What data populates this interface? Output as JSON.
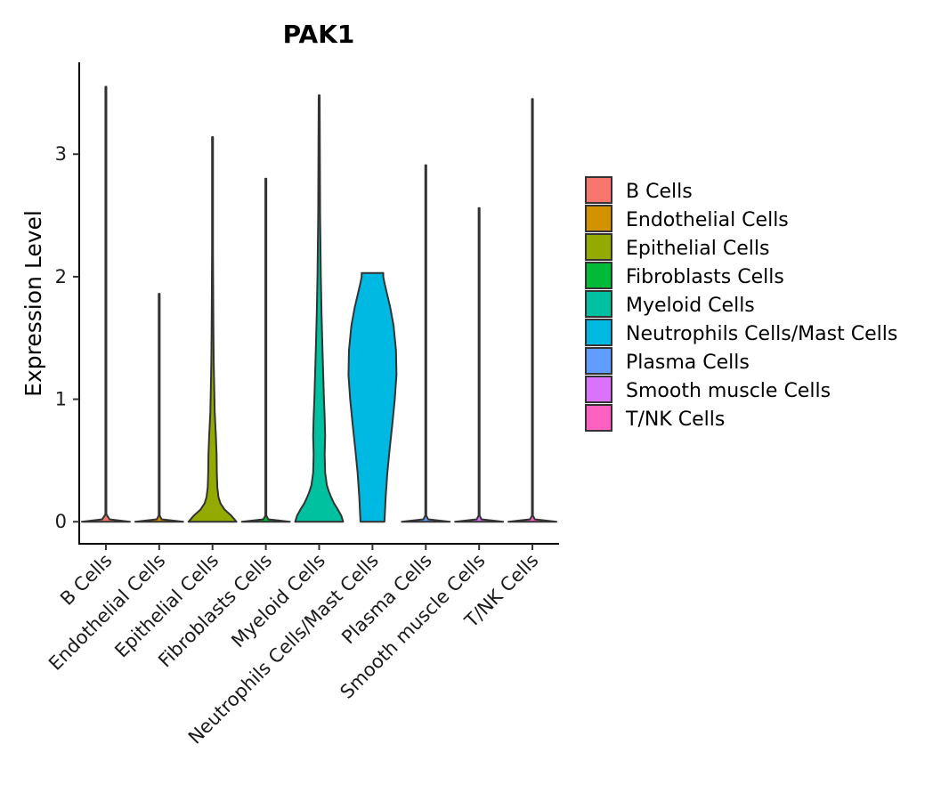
{
  "chart_data": {
    "type": "violin",
    "title": "PAK1",
    "xlabel": "",
    "ylabel": "Expression Level",
    "ylim": [
      -0.18,
      3.75
    ],
    "yticks": [
      0,
      1,
      2,
      3
    ],
    "grid": false,
    "legend_position": "right",
    "categories": [
      "B Cells",
      "Endothelial Cells",
      "Epithelial Cells",
      "Fibroblasts Cells",
      "Myeloid Cells",
      "Neutrophils Cells/Mast Cells",
      "Plasma Cells",
      "Smooth muscle Cells",
      "T/NK Cells"
    ],
    "colors": [
      "#F8766D",
      "#D39200",
      "#93AA00",
      "#00BA38",
      "#00C19F",
      "#00B9E3",
      "#619CFF",
      "#DB72FB",
      "#FF61C3"
    ],
    "series": [
      {
        "name": "B Cells",
        "max": 3.55,
        "profile": [
          [
            0,
            1.0
          ],
          [
            0.02,
            0.15
          ],
          [
            0.06,
            0.02
          ],
          [
            3.55,
            0.02
          ]
        ]
      },
      {
        "name": "Endothelial Cells",
        "max": 1.86,
        "profile": [
          [
            0,
            1.0
          ],
          [
            0.02,
            0.1
          ],
          [
            0.05,
            0.02
          ],
          [
            1.86,
            0.02
          ]
        ]
      },
      {
        "name": "Epithelial Cells",
        "max": 3.14,
        "profile": [
          [
            0,
            1.0
          ],
          [
            0.05,
            0.78
          ],
          [
            0.1,
            0.5
          ],
          [
            0.15,
            0.33
          ],
          [
            0.2,
            0.25
          ],
          [
            0.28,
            0.2
          ],
          [
            0.4,
            0.18
          ],
          [
            0.55,
            0.17
          ],
          [
            0.7,
            0.14
          ],
          [
            0.9,
            0.09
          ],
          [
            1.1,
            0.07
          ],
          [
            1.3,
            0.05
          ],
          [
            1.5,
            0.04
          ],
          [
            1.8,
            0.03
          ],
          [
            2.2,
            0.02
          ],
          [
            3.14,
            0.02
          ]
        ]
      },
      {
        "name": "Fibroblasts Cells",
        "max": 2.8,
        "profile": [
          [
            0,
            1.0
          ],
          [
            0.02,
            0.1
          ],
          [
            0.05,
            0.02
          ],
          [
            2.8,
            0.02
          ]
        ]
      },
      {
        "name": "Myeloid Cells",
        "max": 3.48,
        "profile": [
          [
            0,
            1.0
          ],
          [
            0.05,
            0.92
          ],
          [
            0.1,
            0.78
          ],
          [
            0.15,
            0.62
          ],
          [
            0.2,
            0.5
          ],
          [
            0.25,
            0.4
          ],
          [
            0.3,
            0.32
          ],
          [
            0.4,
            0.25
          ],
          [
            0.55,
            0.23
          ],
          [
            0.7,
            0.25
          ],
          [
            0.85,
            0.23
          ],
          [
            1.0,
            0.2
          ],
          [
            1.2,
            0.17
          ],
          [
            1.4,
            0.14
          ],
          [
            1.7,
            0.1
          ],
          [
            2.0,
            0.07
          ],
          [
            2.5,
            0.04
          ],
          [
            3.0,
            0.03
          ],
          [
            3.48,
            0.02
          ]
        ]
      },
      {
        "name": "Neutrophils Cells/Mast Cells",
        "max": 2.03,
        "profile": [
          [
            0,
            0.5
          ],
          [
            0.2,
            0.55
          ],
          [
            0.4,
            0.62
          ],
          [
            0.6,
            0.72
          ],
          [
            0.8,
            0.83
          ],
          [
            1.0,
            0.93
          ],
          [
            1.2,
            1.0
          ],
          [
            1.4,
            0.98
          ],
          [
            1.6,
            0.88
          ],
          [
            1.75,
            0.74
          ],
          [
            1.85,
            0.62
          ],
          [
            1.95,
            0.5
          ],
          [
            2.0,
            0.45
          ],
          [
            2.03,
            0.45
          ]
        ]
      },
      {
        "name": "Plasma Cells",
        "max": 2.91,
        "profile": [
          [
            0,
            1.0
          ],
          [
            0.02,
            0.1
          ],
          [
            0.05,
            0.02
          ],
          [
            2.91,
            0.02
          ]
        ]
      },
      {
        "name": "Smooth muscle Cells",
        "max": 2.56,
        "profile": [
          [
            0,
            1.0
          ],
          [
            0.02,
            0.1
          ],
          [
            0.05,
            0.02
          ],
          [
            2.56,
            0.02
          ]
        ]
      },
      {
        "name": "T/NK Cells",
        "max": 3.45,
        "profile": [
          [
            0,
            1.0
          ],
          [
            0.02,
            0.1
          ],
          [
            0.05,
            0.02
          ],
          [
            3.45,
            0.02
          ]
        ]
      }
    ],
    "legend": [
      "B Cells",
      "Endothelial Cells",
      "Epithelial Cells",
      "Fibroblasts Cells",
      "Myeloid Cells",
      "Neutrophils Cells/Mast Cells",
      "Plasma Cells",
      "Smooth muscle Cells",
      "T/NK Cells"
    ]
  }
}
